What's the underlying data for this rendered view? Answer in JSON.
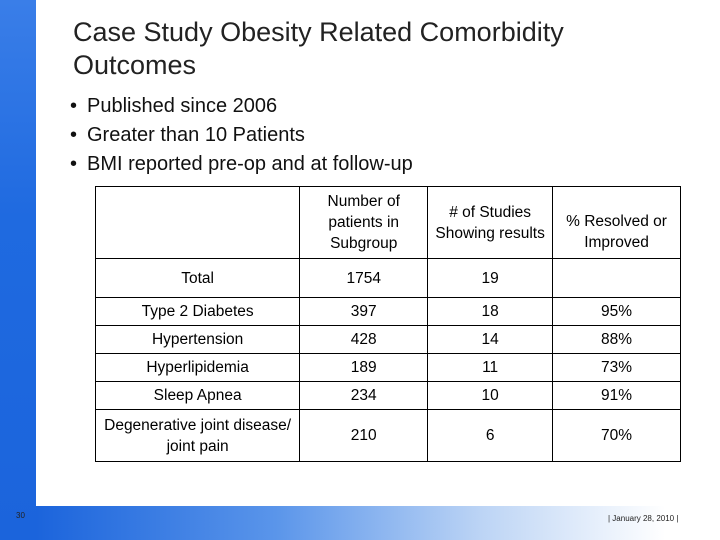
{
  "title": "Case Study Obesity Related Comorbidity Outcomes",
  "bullets": [
    "Published since 2006",
    "Greater than 10 Patients",
    "BMI reported pre-op and at follow-up"
  ],
  "table": {
    "headers": [
      "",
      "Number of patients in Subgroup",
      "# of Studies Showing results",
      "% Resolved or Improved"
    ],
    "rows": [
      {
        "label": "Total",
        "patients": "1754",
        "studies": "19",
        "resolved": ""
      },
      {
        "label": "Type 2 Diabetes",
        "patients": "397",
        "studies": "18",
        "resolved": "95%"
      },
      {
        "label": "Hypertension",
        "patients": "428",
        "studies": "14",
        "resolved": "88%"
      },
      {
        "label": "Hyperlipidemia",
        "patients": "189",
        "studies": "11",
        "resolved": "73%"
      },
      {
        "label": "Sleep Apnea",
        "patients": "234",
        "studies": "10",
        "resolved": "91%"
      },
      {
        "label": "Degenerative joint disease/ joint pain",
        "patients": "210",
        "studies": "6",
        "resolved": "70%"
      }
    ]
  },
  "footer": {
    "slide_number": "30",
    "date": "| January 28, 2010 |"
  },
  "colors": {
    "accent_blue": "#1b64dc"
  }
}
